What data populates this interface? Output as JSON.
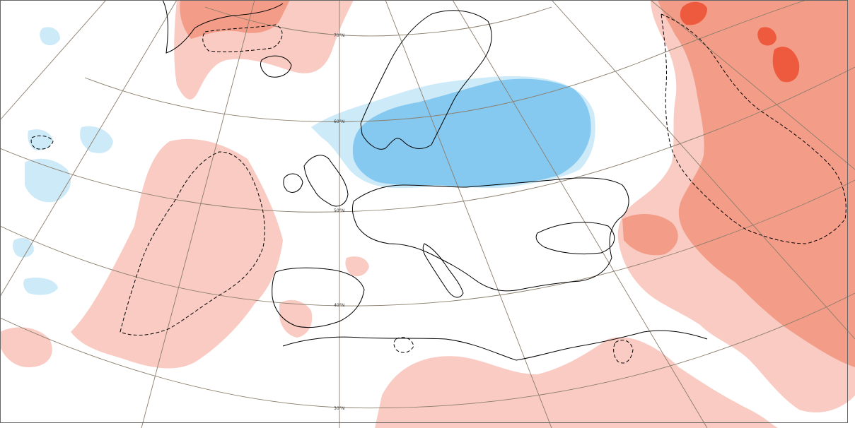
{
  "map": {
    "type": "anomaly-chart",
    "projection": "polar-stereographic",
    "region": "Europe",
    "latitude_labels": [
      "70°N",
      "60°N",
      "50°N",
      "40°N",
      "30°N"
    ],
    "colors": {
      "background": "#ffffff",
      "coastline": "#000000",
      "graticule": "#8b7d6b",
      "light_blue": "#cdeaf8",
      "mid_blue": "#86c9f0",
      "light_red": "#f9cbc2",
      "mid_red": "#f39d89",
      "strong_red": "#ee5a3d",
      "contour": "#000000"
    },
    "anomaly_regions": [
      {
        "name": "blue-anomaly",
        "level": "negative"
      },
      {
        "name": "red-anomaly-east",
        "level": "positive"
      },
      {
        "name": "red-anomaly-atlantic",
        "level": "positive"
      },
      {
        "name": "red-anomaly-north-africa",
        "level": "positive"
      }
    ],
    "contour_style": "dashed"
  }
}
